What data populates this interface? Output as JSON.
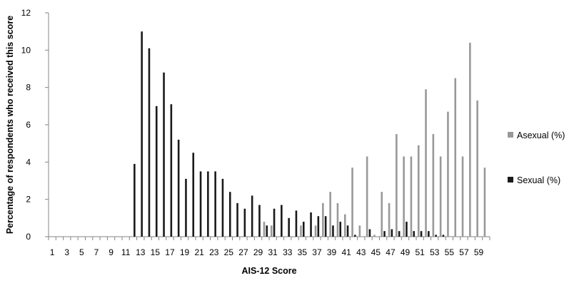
{
  "chart_data": {
    "type": "bar",
    "title": "",
    "xlabel": "AIS-12 Score",
    "ylabel": "Percentage of respondents who received this score",
    "ylim": [
      0,
      12
    ],
    "yticks": [
      0,
      2,
      4,
      6,
      8,
      10,
      12
    ],
    "x_tick_labels": [
      "1",
      "3",
      "5",
      "7",
      "9",
      "11",
      "13",
      "15",
      "17",
      "19",
      "21",
      "23",
      "25",
      "27",
      "29",
      "31",
      "33",
      "35",
      "37",
      "39",
      "41",
      "43",
      "45",
      "47",
      "49",
      "51",
      "53",
      "55",
      "57",
      "59"
    ],
    "grid": false,
    "legend_position": "right",
    "x": [
      1,
      2,
      3,
      4,
      5,
      6,
      7,
      8,
      9,
      10,
      11,
      12,
      13,
      14,
      15,
      16,
      17,
      18,
      19,
      20,
      21,
      22,
      23,
      24,
      25,
      26,
      27,
      28,
      29,
      30,
      31,
      32,
      33,
      34,
      35,
      36,
      37,
      38,
      39,
      40,
      41,
      42,
      43,
      44,
      45,
      46,
      47,
      48,
      49,
      50,
      51,
      52,
      53,
      54,
      55,
      56,
      57,
      58,
      59,
      60
    ],
    "series": [
      {
        "name": "Asexual (%)",
        "color": "#999999",
        "values": [
          0,
          0,
          0,
          0,
          0,
          0,
          0,
          0,
          0,
          0,
          0,
          0,
          0,
          0,
          0,
          0,
          0,
          0,
          0,
          0,
          0,
          0,
          0,
          0,
          0,
          0,
          0,
          0,
          0,
          0.8,
          0.6,
          0,
          0,
          0,
          0.6,
          0,
          0.6,
          1.8,
          2.4,
          1.8,
          1.2,
          3.7,
          0.6,
          4.3,
          0.1,
          2.4,
          1.8,
          5.5,
          4.3,
          4.3,
          4.9,
          7.9,
          5.5,
          4.3,
          6.7,
          8.5,
          4.3,
          10.4,
          7.3,
          3.7
        ]
      },
      {
        "name": "Sexual (%)",
        "color": "#1a1a1a",
        "values": [
          0,
          0,
          0,
          0,
          0,
          0,
          0,
          0,
          0,
          0,
          0,
          3.9,
          11.0,
          10.1,
          7.0,
          8.8,
          7.1,
          5.2,
          3.1,
          4.5,
          3.5,
          3.5,
          3.5,
          3.1,
          2.4,
          1.8,
          1.5,
          2.2,
          1.7,
          0.6,
          1.5,
          1.7,
          1.0,
          1.4,
          0.8,
          1.3,
          1.1,
          1.1,
          0.6,
          0.8,
          0.6,
          0.1,
          0,
          0.4,
          0,
          0.3,
          0.4,
          0.3,
          0.8,
          0.3,
          0.3,
          0.3,
          0.1,
          0.1,
          0,
          0,
          0,
          0,
          0,
          0
        ]
      }
    ]
  }
}
